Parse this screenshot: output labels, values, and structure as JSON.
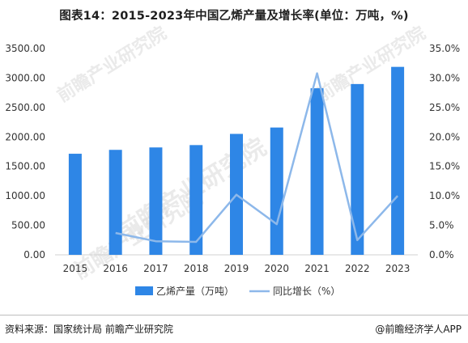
{
  "title": "图表14：2015-2023年中国乙烯产量及增长率(单位：万吨，%)",
  "footer": {
    "source": "资料来源：国家统计局 前瞻产业研究院",
    "brand": "@前瞻经济学人APP"
  },
  "watermark": "前瞻产业研究院",
  "chart_data": {
    "type": "bar",
    "categories": [
      "2015",
      "2016",
      "2017",
      "2018",
      "2019",
      "2020",
      "2021",
      "2022",
      "2023"
    ],
    "series": [
      {
        "name": "乙烯产量（万吨）",
        "type": "bar",
        "axis": "left",
        "color": "#2e86e6",
        "values": [
          1715,
          1781,
          1822,
          1862,
          2052,
          2160,
          2826,
          2898,
          3189
        ]
      },
      {
        "name": "同比增长（%）",
        "type": "line",
        "axis": "right",
        "color": "#8db8ea",
        "values": [
          null,
          3.7,
          2.3,
          2.2,
          10.2,
          5.2,
          30.8,
          2.5,
          10.0
        ]
      }
    ],
    "y_left": {
      "ylim": [
        0,
        3500
      ],
      "ticks": [
        "0.00",
        "500.00",
        "1000.00",
        "1500.00",
        "2000.00",
        "2500.00",
        "3000.00",
        "3500.00"
      ]
    },
    "y_right": {
      "ylim": [
        0,
        35
      ],
      "ticks": [
        "0.0%",
        "5.0%",
        "10.0%",
        "15.0%",
        "20.0%",
        "25.0%",
        "30.0%",
        "35.0%"
      ]
    },
    "legend_position": "bottom-center",
    "grid": false
  }
}
